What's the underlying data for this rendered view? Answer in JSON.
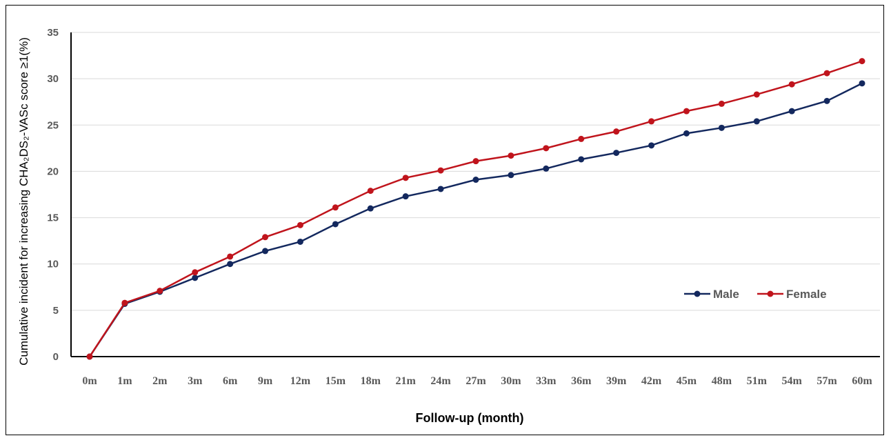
{
  "chart_data": {
    "type": "line",
    "xlabel": "Follow-up (month)",
    "ylabel": "Cumulative incident  for increasing CHA₂DS₂-VASc score ≥1(%)",
    "categories": [
      "0m",
      "1m",
      "2m",
      "3m",
      "6m",
      "9m",
      "12m",
      "15m",
      "18m",
      "21m",
      "24m",
      "27m",
      "30m",
      "33m",
      "36m",
      "39m",
      "42m",
      "45m",
      "48m",
      "51m",
      "54m",
      "57m",
      "60m"
    ],
    "ylim": [
      0,
      35
    ],
    "yticks": [
      0,
      5,
      10,
      15,
      20,
      25,
      30,
      35
    ],
    "grid": "horizontal",
    "legend_position": "right",
    "series": [
      {
        "name": "Male",
        "color": "#13285e",
        "values": [
          0,
          5.7,
          7.0,
          8.5,
          10.0,
          11.4,
          12.4,
          14.3,
          16.0,
          17.3,
          18.1,
          19.1,
          19.6,
          20.3,
          21.3,
          22.0,
          22.8,
          24.1,
          24.7,
          25.4,
          26.5,
          27.6,
          29.5
        ]
      },
      {
        "name": "Female",
        "color": "#c0141c",
        "values": [
          0,
          5.8,
          7.1,
          9.1,
          10.8,
          12.9,
          14.2,
          16.1,
          17.9,
          19.3,
          20.1,
          21.1,
          21.7,
          22.5,
          23.5,
          24.3,
          25.4,
          26.5,
          27.3,
          28.3,
          29.4,
          30.6,
          31.9
        ]
      }
    ]
  }
}
